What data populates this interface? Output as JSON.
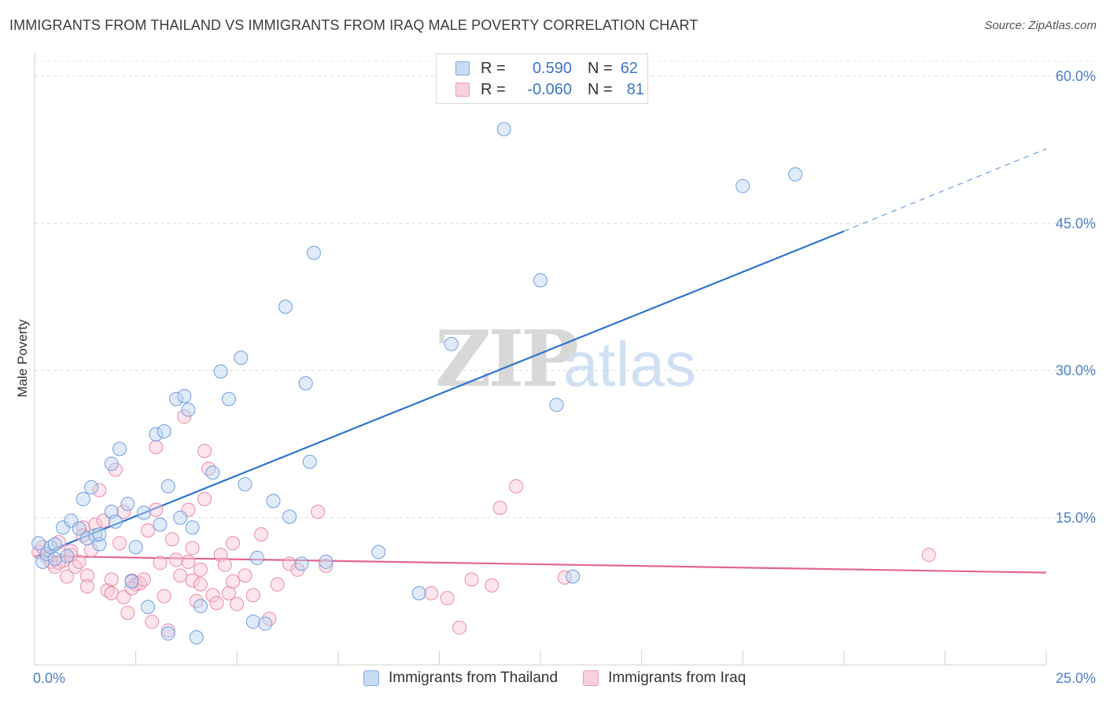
{
  "title": "IMMIGRANTS FROM THAILAND VS IMMIGRANTS FROM IRAQ MALE POVERTY CORRELATION CHART",
  "source": "Source: ZipAtlas.com",
  "watermark": {
    "zip": "ZIP",
    "atlas": "atlas"
  },
  "legend": {
    "rows": [
      {
        "r_label": "R =",
        "r_value": "0.590",
        "n_label": "N =",
        "n_value": "62",
        "color": "#a9c8ee"
      },
      {
        "r_label": "R =",
        "r_value": "-0.060",
        "n_label": "N =",
        "n_value": "81",
        "color": "#f6b8cc"
      }
    ]
  },
  "bottom_legend": [
    {
      "label": "Immigrants from Thailand",
      "color": "#a9c8ee"
    },
    {
      "label": "Immigrants from Iraq",
      "color": "#f6b8cc"
    }
  ],
  "chart_data": {
    "type": "scatter",
    "xlabel": "",
    "ylabel": "Male Poverty",
    "xlim": [
      0,
      25
    ],
    "ylim": [
      0,
      62
    ],
    "x_tick_labels": [
      "0.0%",
      "25.0%"
    ],
    "y_ticks": [
      15,
      30,
      45,
      60
    ],
    "y_tick_labels": [
      "15.0%",
      "30.0%",
      "45.0%",
      "60.0%"
    ],
    "grid": true,
    "series": [
      {
        "name": "Immigrants from Thailand",
        "color": "#6f9fdc",
        "fill": "#b8d2f2",
        "trend": {
          "x0": 0,
          "y0": 11.0,
          "x1": 20,
          "y1": 44.2,
          "dashed_to": [
            25,
            52.6
          ]
        },
        "points": [
          [
            0.2,
            10.5
          ],
          [
            0.3,
            11.3
          ],
          [
            0.4,
            12.0
          ],
          [
            0.5,
            12.3
          ],
          [
            0.5,
            10.8
          ],
          [
            0.7,
            14.0
          ],
          [
            0.8,
            11.1
          ],
          [
            0.9,
            14.7
          ],
          [
            1.1,
            13.9
          ],
          [
            1.2,
            16.9
          ],
          [
            1.3,
            12.9
          ],
          [
            1.4,
            18.1
          ],
          [
            1.5,
            13.2
          ],
          [
            1.6,
            12.3
          ],
          [
            1.9,
            15.6
          ],
          [
            1.9,
            20.5
          ],
          [
            2.0,
            14.6
          ],
          [
            2.1,
            22.0
          ],
          [
            2.3,
            16.4
          ],
          [
            2.5,
            12.0
          ],
          [
            2.7,
            15.5
          ],
          [
            2.8,
            5.9
          ],
          [
            3.0,
            23.5
          ],
          [
            3.1,
            14.3
          ],
          [
            3.2,
            23.8
          ],
          [
            3.3,
            18.2
          ],
          [
            3.3,
            3.2
          ],
          [
            3.5,
            27.1
          ],
          [
            3.6,
            15.0
          ],
          [
            3.7,
            27.4
          ],
          [
            3.8,
            26.0
          ],
          [
            3.9,
            14.0
          ],
          [
            4.0,
            2.8
          ],
          [
            4.1,
            6.0
          ],
          [
            4.4,
            19.6
          ],
          [
            4.6,
            29.9
          ],
          [
            4.8,
            27.1
          ],
          [
            5.1,
            31.3
          ],
          [
            5.2,
            18.4
          ],
          [
            5.4,
            4.4
          ],
          [
            5.5,
            10.9
          ],
          [
            5.7,
            4.2
          ],
          [
            5.9,
            16.7
          ],
          [
            6.2,
            36.5
          ],
          [
            6.3,
            15.1
          ],
          [
            6.6,
            10.3
          ],
          [
            6.7,
            28.7
          ],
          [
            6.8,
            20.7
          ],
          [
            6.9,
            42.0
          ],
          [
            7.2,
            10.5
          ],
          [
            8.5,
            11.5
          ],
          [
            9.5,
            7.3
          ],
          [
            10.3,
            32.7
          ],
          [
            11.6,
            54.6
          ],
          [
            12.5,
            39.2
          ],
          [
            12.9,
            26.5
          ],
          [
            13.3,
            9.0
          ],
          [
            17.5,
            48.8
          ],
          [
            18.8,
            50.0
          ],
          [
            0.1,
            12.4
          ],
          [
            1.6,
            13.3
          ],
          [
            2.4,
            8.5
          ]
        ]
      },
      {
        "name": "Immigrants from Iraq",
        "color": "#e98aa9",
        "fill": "#f8c5d5",
        "trend": {
          "x0": 0,
          "y0": 11.1,
          "x1": 25,
          "y1": 9.4
        },
        "points": [
          [
            0.1,
            11.5
          ],
          [
            0.2,
            12.0
          ],
          [
            0.3,
            11.0
          ],
          [
            0.4,
            10.5
          ],
          [
            0.5,
            10.0
          ],
          [
            0.6,
            12.5
          ],
          [
            0.7,
            10.6
          ],
          [
            0.8,
            9.0
          ],
          [
            0.9,
            11.2
          ],
          [
            1.0,
            10.0
          ],
          [
            1.1,
            10.5
          ],
          [
            1.2,
            14.0
          ],
          [
            1.3,
            9.1
          ],
          [
            1.3,
            8.0
          ],
          [
            1.4,
            11.7
          ],
          [
            1.5,
            14.3
          ],
          [
            1.6,
            17.8
          ],
          [
            1.7,
            14.7
          ],
          [
            1.8,
            7.6
          ],
          [
            1.9,
            7.3
          ],
          [
            1.9,
            8.7
          ],
          [
            2.0,
            19.9
          ],
          [
            2.1,
            12.4
          ],
          [
            2.2,
            15.6
          ],
          [
            2.2,
            6.9
          ],
          [
            2.3,
            5.3
          ],
          [
            2.4,
            8.6
          ],
          [
            2.5,
            8.2
          ],
          [
            2.6,
            8.3
          ],
          [
            2.7,
            8.7
          ],
          [
            2.8,
            13.7
          ],
          [
            2.9,
            4.4
          ],
          [
            3.0,
            22.2
          ],
          [
            3.0,
            15.8
          ],
          [
            3.1,
            10.4
          ],
          [
            3.2,
            7.0
          ],
          [
            3.3,
            3.5
          ],
          [
            3.4,
            12.8
          ],
          [
            3.5,
            10.7
          ],
          [
            3.6,
            9.1
          ],
          [
            3.7,
            25.3
          ],
          [
            3.8,
            15.8
          ],
          [
            3.8,
            10.5
          ],
          [
            3.9,
            8.6
          ],
          [
            4.0,
            6.5
          ],
          [
            4.1,
            9.7
          ],
          [
            4.1,
            8.2
          ],
          [
            4.2,
            21.8
          ],
          [
            4.3,
            20.0
          ],
          [
            4.4,
            7.1
          ],
          [
            4.5,
            6.3
          ],
          [
            4.6,
            11.2
          ],
          [
            4.7,
            10.2
          ],
          [
            4.8,
            7.3
          ],
          [
            4.9,
            8.5
          ],
          [
            5.0,
            6.2
          ],
          [
            5.2,
            9.1
          ],
          [
            5.4,
            7.1
          ],
          [
            5.6,
            13.3
          ],
          [
            5.8,
            4.7
          ],
          [
            6.0,
            8.2
          ],
          [
            6.3,
            10.3
          ],
          [
            6.5,
            9.7
          ],
          [
            7.0,
            15.6
          ],
          [
            7.2,
            10.1
          ],
          [
            9.8,
            7.3
          ],
          [
            10.2,
            6.8
          ],
          [
            10.5,
            3.8
          ],
          [
            10.8,
            8.7
          ],
          [
            11.3,
            8.1
          ],
          [
            11.5,
            16.0
          ],
          [
            11.9,
            18.2
          ],
          [
            13.1,
            8.9
          ],
          [
            22.1,
            11.2
          ],
          [
            0.9,
            11.6
          ],
          [
            1.2,
            13.2
          ],
          [
            2.4,
            7.8
          ],
          [
            3.9,
            11.9
          ],
          [
            4.2,
            16.9
          ],
          [
            4.9,
            12.4
          ],
          [
            0.6,
            10.4
          ]
        ]
      }
    ]
  }
}
